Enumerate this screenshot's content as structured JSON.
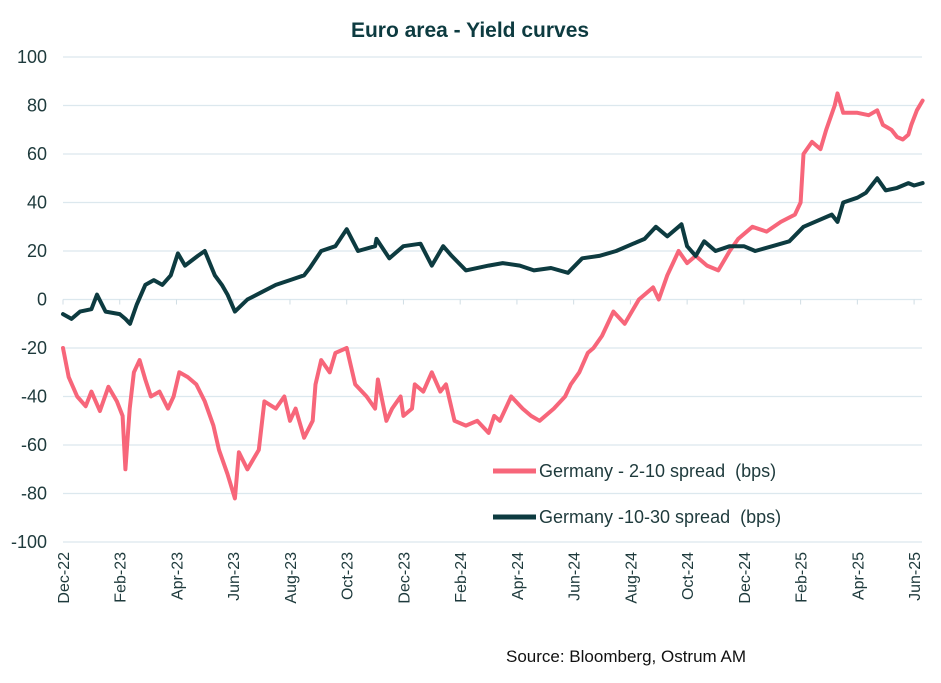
{
  "chart_data": {
    "type": "line",
    "title": "Euro area - Yield curves",
    "xlabel": "",
    "ylabel": "",
    "ylim": [
      -100,
      100
    ],
    "yticks": [
      "100",
      "80",
      "60",
      "40",
      "20",
      "0",
      "-20",
      "-40",
      "-60",
      "-80",
      "-100"
    ],
    "x_unit": "months since Dec-22",
    "xlim": [
      0,
      30.3
    ],
    "xticks": [
      "Dec-22",
      "Feb-23",
      "Apr-23",
      "Jun-23",
      "Aug-23",
      "Oct-23",
      "Dec-23",
      "Feb-24",
      "Apr-24",
      "Jun-24",
      "Aug-24",
      "Oct-24",
      "Dec-24",
      "Feb-25",
      "Apr-25",
      "Jun-25"
    ],
    "grid": true,
    "legend_position": "bottom-right",
    "series": [
      {
        "name": "Germany - 2-10 spread  (bps)",
        "color": "#f7667a",
        "x": [
          0,
          0.2,
          0.5,
          0.8,
          1.0,
          1.3,
          1.6,
          1.9,
          2.1,
          2.2,
          2.35,
          2.5,
          2.7,
          2.9,
          3.1,
          3.4,
          3.7,
          3.9,
          4.1,
          4.4,
          4.7,
          5.0,
          5.3,
          5.5,
          5.8,
          6.06,
          6.2,
          6.5,
          6.9,
          7.1,
          7.5,
          7.8,
          8.0,
          8.2,
          8.5,
          8.8,
          8.9,
          9.1,
          9.4,
          9.6,
          10.0,
          10.3,
          10.7,
          11.0,
          11.1,
          11.4,
          11.6,
          11.9,
          12.0,
          12.3,
          12.4,
          12.7,
          13.0,
          13.3,
          13.5,
          13.8,
          14.2,
          14.6,
          15.0,
          15.2,
          15.4,
          15.8,
          16.2,
          16.5,
          16.8,
          17.3,
          17.7,
          17.9,
          18.2,
          18.5,
          18.7,
          19.0,
          19.4,
          19.8,
          20.3,
          20.8,
          21.0,
          21.3,
          21.5,
          21.7,
          22.0,
          22.3,
          22.7,
          23.1,
          23.5,
          23.8,
          24.3,
          24.8,
          25.3,
          25.8,
          26.0,
          26.1,
          26.4,
          26.7,
          26.9,
          27.2,
          27.3,
          27.5,
          28.0,
          28.4,
          28.7,
          28.9,
          29.2,
          29.4,
          29.6,
          29.8,
          29.9,
          30.1,
          30.3
        ],
        "values": [
          -20,
          -32,
          -40,
          -44,
          -38,
          -46,
          -36,
          -42,
          -48,
          -70,
          -45,
          -30,
          -25,
          -33,
          -40,
          -38,
          -45,
          -40,
          -30,
          -32,
          -35,
          -42,
          -52,
          -62,
          -72,
          -82,
          -63,
          -70,
          -62,
          -42,
          -45,
          -40,
          -50,
          -45,
          -57,
          -50,
          -35,
          -25,
          -30,
          -22,
          -20,
          -35,
          -40,
          -45,
          -33,
          -50,
          -45,
          -40,
          -48,
          -45,
          -35,
          -38,
          -30,
          -38,
          -35,
          -50,
          -52,
          -50,
          -55,
          -48,
          -50,
          -40,
          -45,
          -48,
          -50,
          -45,
          -40,
          -35,
          -30,
          -22,
          -20,
          -15,
          -5,
          -10,
          0,
          5,
          0,
          10,
          15,
          20,
          15,
          18,
          14,
          12,
          20,
          25,
          30,
          28,
          32,
          35,
          40,
          60,
          65,
          62,
          70,
          80,
          85,
          77,
          77,
          76,
          78,
          72,
          70,
          67,
          66,
          68,
          72,
          78,
          82
        ]
      },
      {
        "name": "Germany -10-30 spread  (bps)",
        "color": "#0d3b40",
        "x": [
          0,
          0.3,
          0.6,
          1.0,
          1.2,
          1.5,
          2.0,
          2.2,
          2.36,
          2.6,
          2.9,
          3.2,
          3.5,
          3.8,
          4.05,
          4.3,
          4.75,
          5.0,
          5.35,
          5.6,
          5.8,
          6.06,
          6.5,
          7.0,
          7.5,
          8.0,
          8.5,
          8.7,
          9.1,
          9.6,
          10.0,
          10.4,
          11.0,
          11.05,
          11.5,
          12.0,
          12.6,
          13.0,
          13.4,
          13.7,
          14.2,
          15.0,
          15.5,
          16.1,
          16.6,
          17.2,
          17.8,
          18.3,
          18.9,
          19.5,
          20.1,
          20.5,
          20.9,
          21.3,
          21.8,
          22.0,
          22.3,
          22.6,
          23.0,
          23.5,
          24.0,
          24.4,
          25.0,
          25.6,
          26.1,
          26.5,
          27.1,
          27.3,
          27.5,
          28.0,
          28.3,
          28.7,
          29.0,
          29.4,
          29.8,
          30.0,
          30.3
        ],
        "values": [
          -6,
          -8,
          -5,
          -4,
          2,
          -5,
          -6,
          -8,
          -10,
          -2,
          6,
          8,
          6,
          10,
          19,
          14,
          18,
          20,
          10,
          6,
          2,
          -5,
          0,
          3,
          6,
          8,
          10,
          13,
          20,
          22,
          29,
          20,
          22,
          25,
          17,
          22,
          23,
          14,
          22,
          18,
          12,
          14,
          15,
          14,
          12,
          13,
          11,
          17,
          18,
          20,
          23,
          25,
          30,
          26,
          31,
          22,
          18,
          24,
          20,
          22,
          22,
          20,
          22,
          24,
          30,
          32,
          35,
          32,
          40,
          42,
          44,
          50,
          45,
          46,
          48,
          47,
          48
        ]
      }
    ]
  },
  "source": "Source: Bloomberg, Ostrum AM"
}
